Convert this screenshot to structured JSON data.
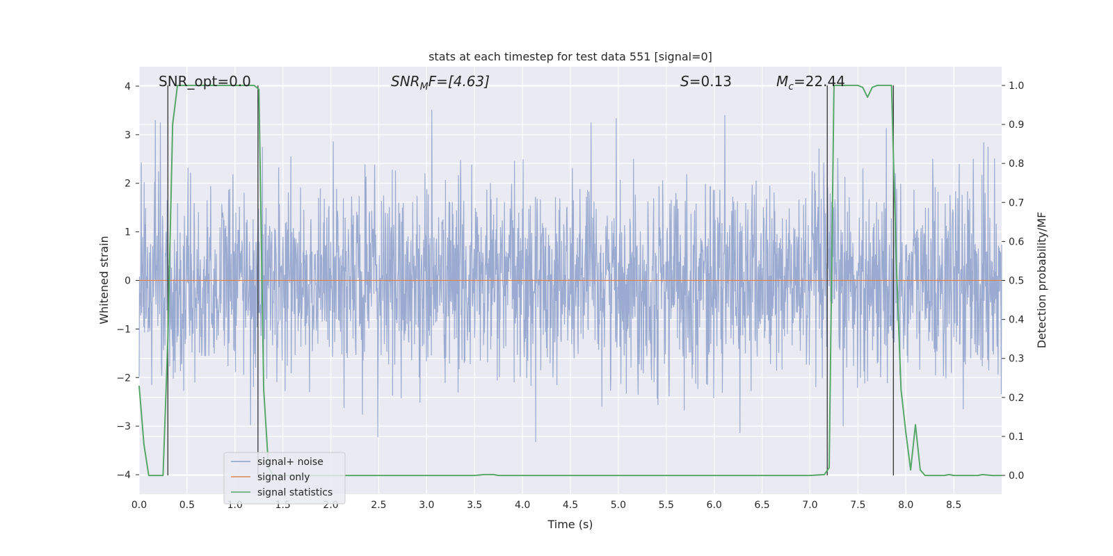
{
  "chart_data": {
    "type": "line",
    "title": "stats at each timestep for test data 551 [signal=0]",
    "xlabel": "Time (s)",
    "ylabel_left": "Whitened strain",
    "ylabel_right": "Detection probability/MF",
    "xlim": [
      0.0,
      9.0
    ],
    "ylim_left": [
      -4.4,
      4.4
    ],
    "ylim_right": [
      -0.048,
      1.048
    ],
    "x_ticks": [
      0.0,
      0.5,
      1.0,
      1.5,
      2.0,
      2.5,
      3.0,
      3.5,
      4.0,
      4.5,
      5.0,
      5.5,
      6.0,
      6.5,
      7.0,
      7.5,
      8.0,
      8.5
    ],
    "x_tick_labels": [
      "0.0",
      "0.5",
      "1.0",
      "1.5",
      "2.0",
      "2.5",
      "3.0",
      "3.5",
      "4.0",
      "4.5",
      "5.0",
      "5.5",
      "6.0",
      "6.5",
      "7.0",
      "7.5",
      "8.0",
      "8.5"
    ],
    "y_ticks_left": [
      4,
      3,
      2,
      1,
      0,
      -1,
      -2,
      -3,
      -4
    ],
    "y_tick_labels_left": [
      "4",
      "3",
      "2",
      "1",
      "0",
      "−1",
      "−2",
      "−3",
      "−4"
    ],
    "y_ticks_right": [
      1.0,
      0.9,
      0.8,
      0.7,
      0.6,
      0.5,
      0.4,
      0.3,
      0.2,
      0.1,
      0.0
    ],
    "y_tick_labels_right": [
      "1.0",
      "0.9",
      "0.8",
      "0.7",
      "0.6",
      "0.5",
      "0.4",
      "0.3",
      "0.2",
      "0.1",
      "0.0"
    ],
    "grid": true,
    "legend": {
      "location": "lower-left",
      "entries": [
        "signal+ noise",
        "signal only",
        "signal statistics"
      ]
    },
    "annotations": {
      "snr_opt": "SNR_opt=0.0",
      "snr_mf_prefix": "SNR",
      "snr_mf_sub": "M",
      "snr_mf_suffix": "F=[4.63]",
      "s_stat_sym": "S",
      "s_stat_value": "=0.13",
      "mc_sym": "M",
      "mc_sub": "c",
      "mc_value": "=22.44"
    },
    "series": [
      {
        "name": "signal+ noise",
        "axis": "left",
        "color": "#8c9fca",
        "description": "whitened noise, approx. standard normal amplitude over 0-9 s",
        "amplitude_sigma": 1.0,
        "peak_max": 3.95,
        "peak_min": -3.9
      },
      {
        "name": "signal only",
        "axis": "left",
        "color": "#dd8452",
        "x": [
          0.0,
          9.0
        ],
        "y": [
          0.0,
          0.0
        ]
      },
      {
        "name": "signal statistics",
        "axis": "right",
        "color": "#55a868",
        "x": [
          0.0,
          0.05,
          0.1,
          0.15,
          0.2,
          0.25,
          0.3,
          0.35,
          0.4,
          0.5,
          0.6,
          0.8,
          1.0,
          1.2,
          1.25,
          1.3,
          1.35,
          1.4,
          1.45,
          1.5,
          2.0,
          2.5,
          3.0,
          3.5,
          3.6,
          3.7,
          3.75,
          4.0,
          5.0,
          6.0,
          7.0,
          7.15,
          7.2,
          7.25,
          7.3,
          7.4,
          7.5,
          7.55,
          7.6,
          7.65,
          7.7,
          7.8,
          7.85,
          7.9,
          7.95,
          8.0,
          8.05,
          8.1,
          8.15,
          8.2,
          8.3,
          8.4,
          8.45,
          8.5,
          8.6,
          8.75,
          8.8,
          8.9,
          9.0
        ],
        "y": [
          0.23,
          0.08,
          0.0,
          0.0,
          0.0,
          0.0,
          0.35,
          0.9,
          1.0,
          1.0,
          1.0,
          1.0,
          1.0,
          1.0,
          0.99,
          0.22,
          0.02,
          0.0,
          0.0,
          0.0,
          0.0,
          0.0,
          0.0,
          0.0,
          0.002,
          0.002,
          0.0,
          0.0,
          0.0,
          0.0,
          0.0,
          0.002,
          0.02,
          1.0,
          1.0,
          1.0,
          1.0,
          0.995,
          0.97,
          0.995,
          1.0,
          1.0,
          1.0,
          0.55,
          0.22,
          0.11,
          0.014,
          0.13,
          0.014,
          0.0,
          0.0,
          0.0,
          0.002,
          0.0,
          0.0,
          0.0,
          0.002,
          0.0,
          0.0
        ]
      }
    ],
    "vertical_markers": [
      {
        "name": "marker-1",
        "x": 0.3
      },
      {
        "name": "marker-2",
        "x": 1.24
      },
      {
        "name": "marker-3",
        "x": 7.18
      },
      {
        "name": "marker-4",
        "x": 7.87
      }
    ]
  }
}
